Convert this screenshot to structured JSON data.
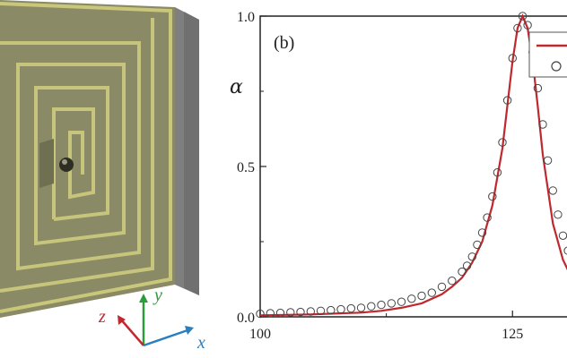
{
  "panel_b_label": "(b)",
  "axis_letters": {
    "x": "x",
    "y": "y",
    "z": "z"
  },
  "colors": {
    "fit_line": "#c0282f",
    "markers": "#444444",
    "axis_x": "#2a7fc0",
    "axis_y": "#2e9a3a",
    "axis_z": "#c0282f",
    "structure_face": "#8a8a66",
    "structure_rim": "#c9c77a",
    "structure_side": "#7a7a7a"
  },
  "icons": [
    "coordinate-axes-icon",
    "spiral-structure-image"
  ],
  "chart_data": {
    "type": "line",
    "title": "",
    "xlabel": "",
    "ylabel": "α",
    "xlim": [
      100,
      132
    ],
    "ylim": [
      0,
      1
    ],
    "x_ticks": [
      "100",
      "125"
    ],
    "y_ticks": [
      "0.0",
      "0.5",
      "1.0"
    ],
    "legend_placement": "top-right (cropped)",
    "series": [
      {
        "style": "solid-line",
        "x": [
          100,
          105,
          110,
          112,
          114,
          116,
          118,
          119,
          120,
          121,
          122,
          123,
          124,
          125,
          125.5,
          126,
          126.5,
          127,
          127.5,
          128,
          129,
          130,
          131,
          132
        ],
        "y": [
          0.005,
          0.008,
          0.014,
          0.02,
          0.03,
          0.045,
          0.075,
          0.1,
          0.13,
          0.18,
          0.25,
          0.37,
          0.56,
          0.85,
          0.96,
          1.0,
          0.96,
          0.85,
          0.7,
          0.54,
          0.31,
          0.19,
          0.12,
          0.08
        ]
      },
      {
        "style": "open-circles",
        "x": [
          100,
          101,
          102,
          103,
          104,
          105,
          106,
          107,
          108,
          109,
          110,
          111,
          112,
          113,
          114,
          115,
          116,
          117,
          118,
          119,
          120,
          120.5,
          121,
          121.5,
          122,
          122.5,
          123,
          123.5,
          124,
          124.5,
          125,
          125.5,
          126,
          126.5,
          127,
          127.5,
          128,
          128.5,
          129,
          129.5,
          130,
          130.5,
          131
        ],
        "y": [
          0.01,
          0.012,
          0.013,
          0.015,
          0.016,
          0.018,
          0.02,
          0.022,
          0.025,
          0.028,
          0.03,
          0.035,
          0.04,
          0.045,
          0.05,
          0.06,
          0.07,
          0.08,
          0.1,
          0.12,
          0.15,
          0.17,
          0.2,
          0.24,
          0.28,
          0.33,
          0.4,
          0.48,
          0.58,
          0.72,
          0.86,
          0.96,
          1.0,
          0.97,
          0.88,
          0.76,
          0.64,
          0.52,
          0.42,
          0.34,
          0.27,
          0.22,
          0.18
        ]
      }
    ]
  }
}
